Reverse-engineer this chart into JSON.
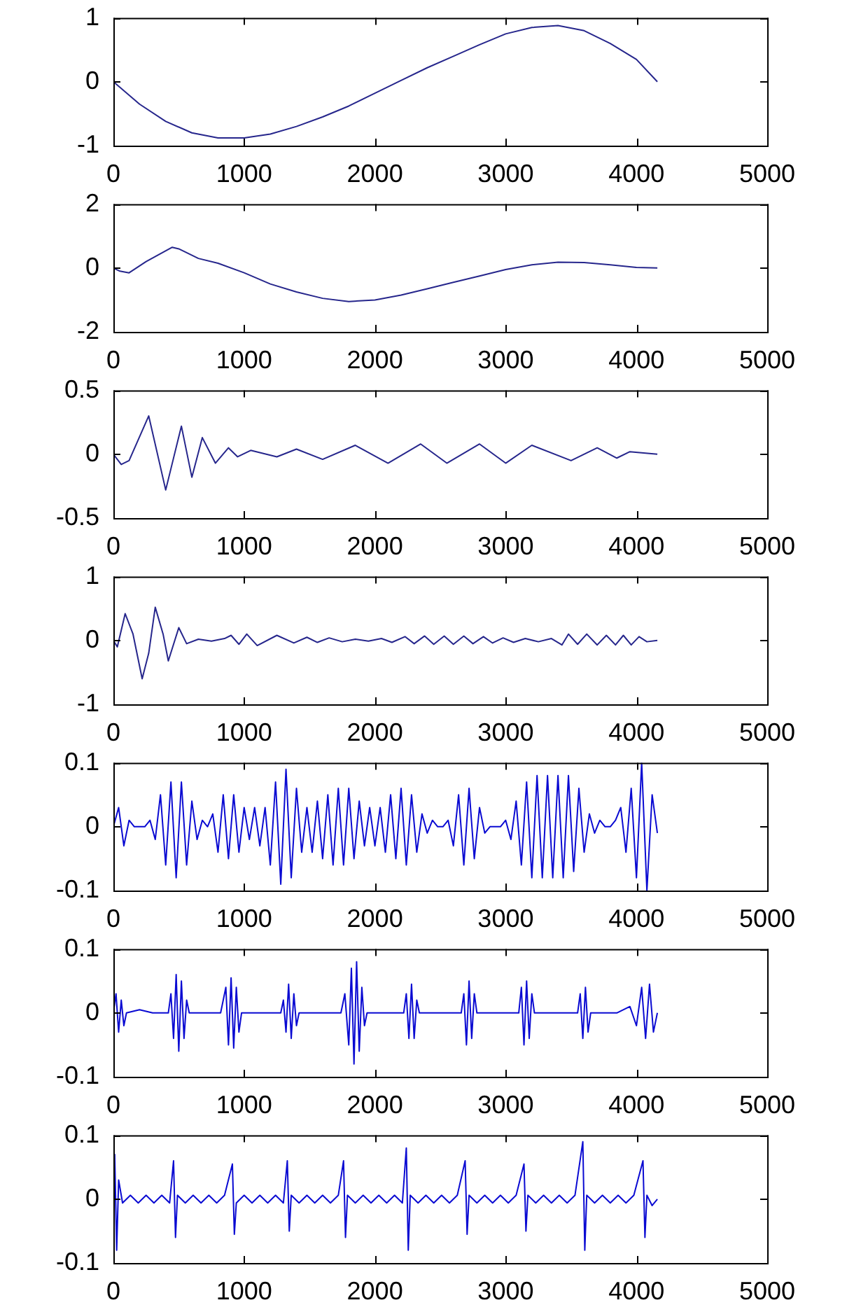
{
  "chart_data": [
    {
      "type": "line",
      "color": "#26268c",
      "xlim": [
        0,
        5000
      ],
      "xticks": [
        0,
        1000,
        2000,
        3000,
        4000,
        5000
      ],
      "ylim": [
        -1,
        1
      ],
      "yticks": [
        -1,
        0,
        1
      ],
      "x": [
        0,
        200,
        400,
        600,
        800,
        1000,
        1200,
        1400,
        1600,
        1800,
        2000,
        2200,
        2400,
        2600,
        2800,
        3000,
        3200,
        3400,
        3600,
        3800,
        4000,
        4160
      ],
      "values": [
        0,
        -0.35,
        -0.62,
        -0.8,
        -0.88,
        -0.88,
        -0.82,
        -0.7,
        -0.55,
        -0.38,
        -0.18,
        0.02,
        0.22,
        0.4,
        0.58,
        0.75,
        0.85,
        0.88,
        0.8,
        0.6,
        0.35,
        0
      ]
    },
    {
      "type": "line",
      "color": "#26268c",
      "xlim": [
        0,
        5000
      ],
      "xticks": [
        0,
        1000,
        2000,
        3000,
        4000,
        5000
      ],
      "ylim": [
        -2,
        2
      ],
      "yticks": [
        -2,
        0,
        2
      ],
      "x": [
        0,
        50,
        120,
        250,
        450,
        500,
        650,
        800,
        1000,
        1200,
        1400,
        1600,
        1800,
        2000,
        2200,
        2400,
        2600,
        2800,
        3000,
        3200,
        3400,
        3600,
        3800,
        4000,
        4160
      ],
      "values": [
        0,
        -0.1,
        -0.15,
        0.2,
        0.65,
        0.6,
        0.3,
        0.15,
        -0.15,
        -0.5,
        -0.75,
        -0.95,
        -1.05,
        -1,
        -0.85,
        -0.65,
        -0.45,
        -0.25,
        -0.05,
        0.1,
        0.18,
        0.17,
        0.1,
        0.02,
        0
      ]
    },
    {
      "type": "line",
      "color": "#26268c",
      "xlim": [
        0,
        5000
      ],
      "xticks": [
        0,
        1000,
        2000,
        3000,
        4000,
        5000
      ],
      "ylim": [
        -0.5,
        0.5
      ],
      "yticks": [
        -0.5,
        0,
        0.5
      ],
      "x": [
        0,
        60,
        120,
        270,
        400,
        520,
        600,
        680,
        780,
        880,
        950,
        1050,
        1250,
        1400,
        1600,
        1850,
        2100,
        2350,
        2550,
        2800,
        3000,
        3200,
        3500,
        3700,
        3850,
        3950,
        4160
      ],
      "values": [
        0,
        -0.08,
        -0.05,
        0.3,
        -0.28,
        0.22,
        -0.18,
        0.13,
        -0.07,
        0.05,
        -0.02,
        0.03,
        -0.02,
        0.04,
        -0.04,
        0.07,
        -0.07,
        0.08,
        -0.07,
        0.08,
        -0.07,
        0.07,
        -0.05,
        0.05,
        -0.03,
        0.02,
        0
      ]
    },
    {
      "type": "line",
      "color": "#26268c",
      "xlim": [
        0,
        5000
      ],
      "xticks": [
        0,
        1000,
        2000,
        3000,
        4000,
        5000
      ],
      "ylim": [
        -1,
        1
      ],
      "yticks": [
        -1,
        0,
        1
      ],
      "x": [
        0,
        30,
        90,
        150,
        220,
        270,
        320,
        380,
        420,
        500,
        560,
        650,
        750,
        850,
        900,
        960,
        1020,
        1100,
        1250,
        1380,
        1480,
        1560,
        1650,
        1750,
        1850,
        1950,
        2050,
        2130,
        2230,
        2300,
        2380,
        2450,
        2530,
        2600,
        2680,
        2750,
        2830,
        2900,
        2980,
        3060,
        3150,
        3250,
        3350,
        3430,
        3480,
        3550,
        3620,
        3700,
        3770,
        3840,
        3900,
        3960,
        4020,
        4080,
        4160
      ],
      "values": [
        0,
        -0.1,
        0.42,
        0.1,
        -0.6,
        -0.2,
        0.52,
        0.1,
        -0.32,
        0.2,
        -0.05,
        0.02,
        -0.01,
        0.03,
        0.08,
        -0.06,
        0.1,
        -0.08,
        0.08,
        -0.04,
        0.05,
        -0.03,
        0.04,
        -0.02,
        0.02,
        -0.01,
        0.03,
        -0.03,
        0.06,
        -0.05,
        0.07,
        -0.06,
        0.07,
        -0.06,
        0.07,
        -0.05,
        0.06,
        -0.04,
        0.04,
        -0.03,
        0.03,
        -0.02,
        0.03,
        -0.07,
        0.1,
        -0.06,
        0.1,
        -0.07,
        0.08,
        -0.07,
        0.08,
        -0.07,
        0.06,
        -0.02,
        0
      ]
    },
    {
      "type": "line",
      "color": "#0a0ad2",
      "xlim": [
        0,
        5000
      ],
      "xticks": [
        0,
        1000,
        2000,
        3000,
        4000,
        5000
      ],
      "ylim": [
        -0.1,
        0.1
      ],
      "yticks": [
        -0.1,
        0,
        0.1
      ],
      "x": [
        0,
        40,
        80,
        120,
        160,
        200,
        240,
        280,
        320,
        360,
        400,
        440,
        480,
        520,
        560,
        600,
        640,
        680,
        720,
        760,
        800,
        840,
        880,
        920,
        960,
        1000,
        1040,
        1080,
        1120,
        1160,
        1200,
        1240,
        1280,
        1320,
        1360,
        1400,
        1440,
        1480,
        1520,
        1560,
        1600,
        1640,
        1680,
        1720,
        1760,
        1800,
        1840,
        1880,
        1920,
        1960,
        2000,
        2040,
        2080,
        2120,
        2160,
        2200,
        2240,
        2280,
        2320,
        2360,
        2400,
        2440,
        2480,
        2520,
        2560,
        2600,
        2640,
        2680,
        2720,
        2760,
        2800,
        2840,
        2880,
        2920,
        2960,
        3000,
        3040,
        3080,
        3120,
        3160,
        3200,
        3240,
        3280,
        3320,
        3360,
        3400,
        3440,
        3480,
        3520,
        3560,
        3600,
        3640,
        3680,
        3720,
        3760,
        3800,
        3840,
        3880,
        3920,
        3960,
        4000,
        4040,
        4080,
        4120,
        4160
      ],
      "values": [
        0,
        0.03,
        -0.03,
        0.01,
        0,
        0,
        0,
        0.01,
        -0.02,
        0.05,
        -0.06,
        0.07,
        -0.08,
        0.07,
        -0.06,
        0.04,
        -0.02,
        0.01,
        0,
        0.02,
        -0.04,
        0.05,
        -0.05,
        0.05,
        -0.04,
        0.03,
        -0.02,
        0.03,
        -0.03,
        0.03,
        -0.06,
        0.07,
        -0.09,
        0.09,
        -0.08,
        0.06,
        -0.04,
        0.03,
        -0.04,
        0.04,
        -0.05,
        0.05,
        -0.06,
        0.06,
        -0.06,
        0.06,
        -0.05,
        0.04,
        -0.03,
        0.03,
        -0.03,
        0.03,
        -0.04,
        0.05,
        -0.05,
        0.06,
        -0.06,
        0.05,
        -0.04,
        0.02,
        -0.01,
        0.01,
        0,
        0,
        0.01,
        -0.03,
        0.05,
        -0.06,
        0.06,
        -0.05,
        0.03,
        -0.01,
        0,
        0,
        0,
        0.01,
        -0.02,
        0.04,
        -0.06,
        0.07,
        -0.08,
        0.08,
        -0.08,
        0.08,
        -0.08,
        0.08,
        -0.08,
        0.08,
        -0.07,
        0.06,
        -0.04,
        0.02,
        -0.01,
        0.01,
        0,
        0,
        0.01,
        0.03,
        -0.04,
        0.06,
        -0.08,
        0.1,
        -0.1,
        0.05,
        -0.01
      ]
    },
    {
      "type": "line",
      "color": "#0a0ad2",
      "xlim": [
        0,
        5000
      ],
      "xticks": [
        0,
        1000,
        2000,
        3000,
        4000,
        5000
      ],
      "ylim": [
        -0.1,
        0.1
      ],
      "yticks": [
        -0.1,
        0,
        0.1
      ],
      "x": [
        0,
        20,
        40,
        60,
        80,
        100,
        200,
        300,
        420,
        440,
        460,
        480,
        500,
        520,
        540,
        560,
        580,
        700,
        820,
        860,
        880,
        900,
        920,
        940,
        960,
        980,
        1100,
        1280,
        1300,
        1320,
        1340,
        1360,
        1380,
        1400,
        1420,
        1550,
        1740,
        1770,
        1800,
        1820,
        1840,
        1860,
        1880,
        1900,
        1920,
        1940,
        2100,
        2220,
        2240,
        2260,
        2280,
        2300,
        2320,
        2340,
        2500,
        2660,
        2680,
        2700,
        2720,
        2740,
        2760,
        2780,
        2950,
        3100,
        3120,
        3140,
        3160,
        3180,
        3200,
        3220,
        3400,
        3550,
        3570,
        3590,
        3610,
        3630,
        3650,
        3850,
        3950,
        4000,
        4040,
        4070,
        4100,
        4130,
        4160
      ],
      "values": [
        0,
        0.03,
        -0.03,
        0.02,
        -0.02,
        0,
        0.005,
        0,
        0,
        0.03,
        -0.04,
        0.06,
        -0.06,
        0.05,
        -0.04,
        0.02,
        0,
        0,
        0,
        0.04,
        -0.05,
        0.055,
        -0.055,
        0.04,
        -0.03,
        0,
        0,
        0,
        0.02,
        -0.03,
        0.045,
        -0.04,
        0.03,
        -0.02,
        0,
        0,
        0,
        0.03,
        -0.05,
        0.07,
        -0.08,
        0.08,
        -0.06,
        0.04,
        -0.02,
        0,
        0,
        0,
        0.03,
        -0.04,
        0.045,
        -0.04,
        0.02,
        0,
        0,
        0,
        0.03,
        -0.05,
        0.05,
        -0.04,
        0.03,
        0,
        0,
        0,
        0.04,
        -0.05,
        0.05,
        -0.04,
        0.03,
        0,
        0,
        0,
        0.03,
        -0.04,
        0.04,
        -0.03,
        0,
        0,
        0.01,
        -0.02,
        0.04,
        -0.04,
        0.045,
        -0.03,
        0
      ]
    },
    {
      "type": "line",
      "color": "#0a0ad2",
      "xlim": [
        0,
        5000
      ],
      "xticks": [
        0,
        1000,
        2000,
        3000,
        4000,
        5000
      ],
      "ylim": [
        -0.1,
        0.1
      ],
      "yticks": [
        -0.1,
        0,
        0.1
      ],
      "x": [
        0,
        10,
        25,
        40,
        70,
        130,
        190,
        250,
        310,
        370,
        430,
        460,
        475,
        490,
        550,
        610,
        670,
        730,
        790,
        850,
        910,
        925,
        940,
        1000,
        1060,
        1120,
        1180,
        1240,
        1300,
        1330,
        1345,
        1360,
        1420,
        1480,
        1540,
        1600,
        1660,
        1720,
        1760,
        1775,
        1790,
        1850,
        1910,
        1970,
        2030,
        2090,
        2150,
        2210,
        2240,
        2255,
        2270,
        2330,
        2390,
        2450,
        2510,
        2570,
        2630,
        2690,
        2705,
        2720,
        2780,
        2840,
        2900,
        2960,
        3020,
        3080,
        3140,
        3155,
        3170,
        3230,
        3290,
        3350,
        3410,
        3470,
        3530,
        3590,
        3605,
        3620,
        3680,
        3740,
        3800,
        3860,
        3920,
        3980,
        4050,
        4065,
        4080,
        4120,
        4160
      ],
      "values": [
        0,
        0.07,
        -0.08,
        0.03,
        -0.006,
        0.006,
        -0.006,
        0.006,
        -0.006,
        0.006,
        -0.006,
        0.06,
        -0.06,
        0.006,
        -0.006,
        0.006,
        -0.006,
        0.006,
        -0.006,
        0.006,
        0.055,
        -0.055,
        -0.006,
        0.006,
        -0.006,
        0.006,
        -0.006,
        0.006,
        -0.006,
        0.06,
        -0.05,
        0.006,
        -0.006,
        0.006,
        -0.006,
        0.006,
        -0.006,
        0.006,
        0.06,
        -0.06,
        0.006,
        -0.006,
        0.006,
        -0.006,
        0.006,
        -0.006,
        0.006,
        -0.006,
        0.08,
        -0.08,
        0.006,
        -0.006,
        0.006,
        -0.006,
        0.006,
        -0.006,
        0.006,
        0.06,
        -0.055,
        0.006,
        -0.006,
        0.006,
        -0.006,
        0.006,
        -0.006,
        0.006,
        0.055,
        -0.05,
        0.006,
        -0.006,
        0.006,
        -0.006,
        0.006,
        -0.006,
        0.006,
        0.09,
        -0.08,
        0.006,
        -0.006,
        0.006,
        -0.006,
        0.006,
        -0.006,
        0.006,
        0.06,
        -0.06,
        0.006,
        -0.01,
        0
      ]
    }
  ]
}
